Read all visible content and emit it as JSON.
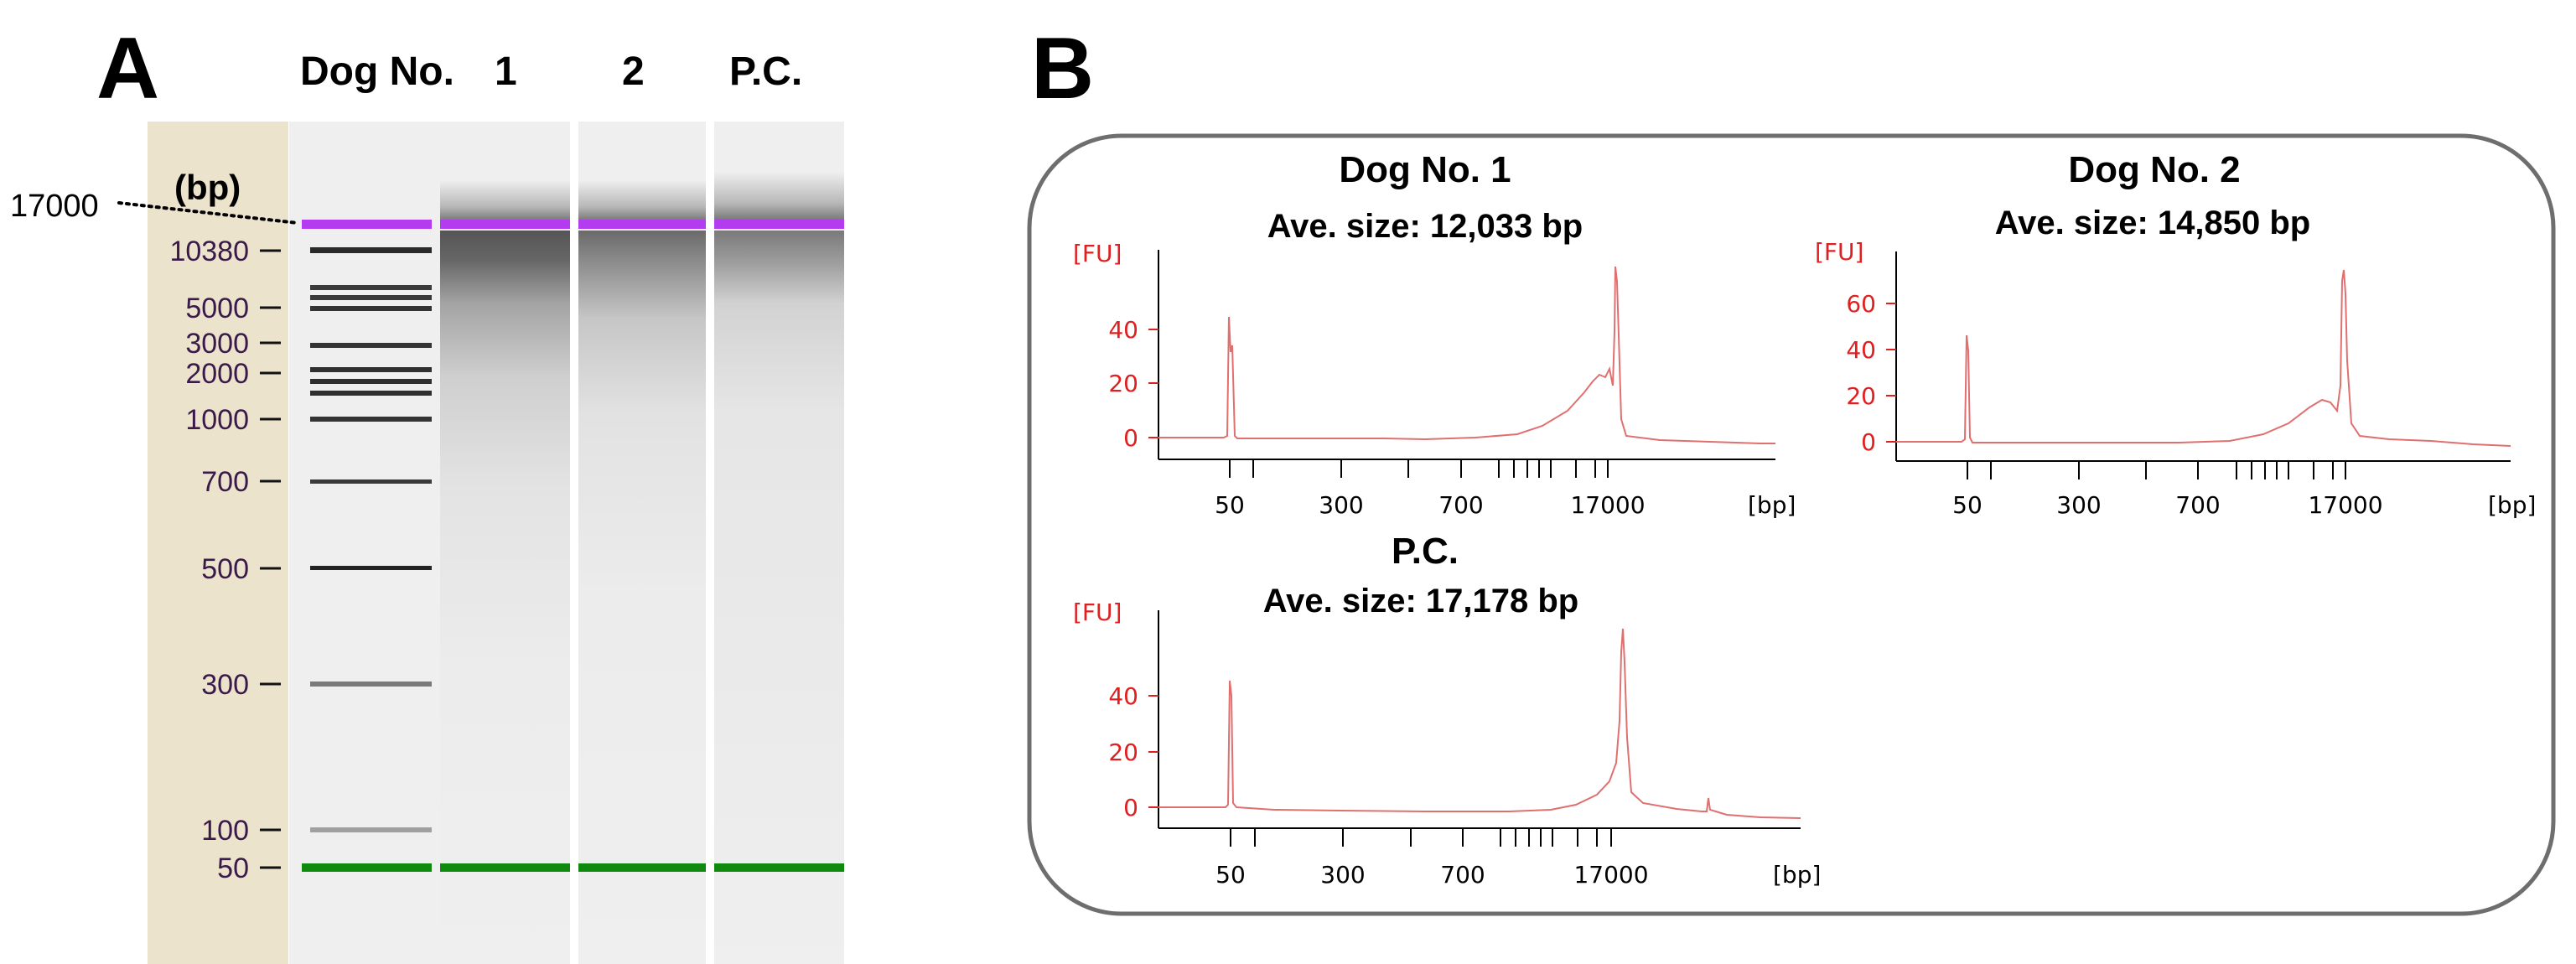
{
  "panel_a": {
    "letter": "A",
    "lane_header_label": "Dog No.",
    "lanes": [
      "1",
      "2",
      "P.C."
    ],
    "unit_label": "(bp)",
    "pointer_label": "17000",
    "ladder_marks": [
      "10380",
      "5000",
      "3000",
      "2000",
      "1000",
      "700",
      "500",
      "300",
      "100",
      "50"
    ],
    "colors": {
      "upper_marker": "#b43cf0",
      "lower_marker": "#0f8a0f",
      "ladder_bg": "#ece3cc",
      "label": "#3a1a4a"
    }
  },
  "panel_b": {
    "letter": "B",
    "plots": [
      {
        "title": "Dog No. 1",
        "subtitle": "Ave. size: 12,033 bp",
        "y_label": "[FU]",
        "y_ticks": [
          "0",
          "20",
          "40"
        ],
        "x_ticks": [
          "50",
          "300",
          "700",
          "17000"
        ],
        "x_unit": "[bp]"
      },
      {
        "title": "Dog No. 2",
        "subtitle": "Ave. size: 14,850 bp",
        "y_label": "[FU]",
        "y_ticks": [
          "0",
          "20",
          "40",
          "60"
        ],
        "x_ticks": [
          "50",
          "300",
          "700",
          "17000"
        ],
        "x_unit": "[bp]"
      },
      {
        "title": "P.C.",
        "subtitle": "Ave. size: 17,178 bp",
        "y_label": "[FU]",
        "y_ticks": [
          "0",
          "20",
          "40"
        ],
        "x_ticks": [
          "50",
          "300",
          "700",
          "17000"
        ],
        "x_unit": "[bp]"
      }
    ],
    "colors": {
      "trace": "#e07070",
      "axis_label": "#e02020",
      "border": "#6e6e6e"
    }
  }
}
